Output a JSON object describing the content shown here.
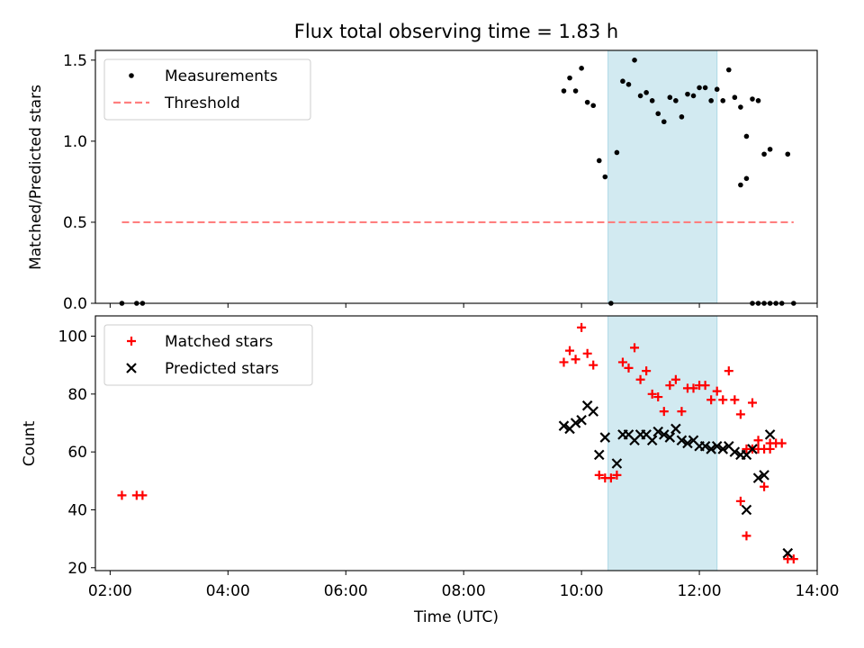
{
  "title": "Flux total observing time = 1.83 h",
  "xlabel": "Time (UTC)",
  "colors": {
    "measurements": "#000000",
    "threshold": "#ff7f7f",
    "matched": "#ff0000",
    "predicted": "#000000",
    "band": "#add8e6"
  },
  "x_ticks": [
    "02:00",
    "04:00",
    "06:00",
    "08:00",
    "10:00",
    "12:00",
    "14:00"
  ],
  "chart_data": [
    {
      "type": "scatter",
      "ylabel": "Matched/Predicted stars",
      "xlim": [
        "01:45",
        "14:00"
      ],
      "ylim": [
        0,
        1.56
      ],
      "y_ticks": [
        "0.0",
        "0.5",
        "1.0",
        "1.5"
      ],
      "y_tick_values": [
        0,
        0.5,
        1.0,
        1.5
      ],
      "shaded_band": [
        "10:27",
        "12:18"
      ],
      "legend": [
        "Measurements",
        "Threshold"
      ],
      "legend_position": "upper left",
      "series": [
        {
          "name": "Measurements",
          "marker": "dot",
          "points": [
            [
              "02:12",
              0
            ],
            [
              "02:27",
              0
            ],
            [
              "02:33",
              0
            ],
            [
              "09:42",
              1.31
            ],
            [
              "09:48",
              1.39
            ],
            [
              "09:54",
              1.31
            ],
            [
              "10:00",
              1.45
            ],
            [
              "10:06",
              1.24
            ],
            [
              "10:12",
              1.22
            ],
            [
              "10:18",
              0.88
            ],
            [
              "10:24",
              0.78
            ],
            [
              "10:30",
              0.0
            ],
            [
              "10:36",
              0.93
            ],
            [
              "10:42",
              1.37
            ],
            [
              "10:48",
              1.35
            ],
            [
              "10:54",
              1.5
            ],
            [
              "11:00",
              1.28
            ],
            [
              "11:06",
              1.3
            ],
            [
              "11:12",
              1.25
            ],
            [
              "11:18",
              1.17
            ],
            [
              "11:24",
              1.12
            ],
            [
              "11:30",
              1.27
            ],
            [
              "11:36",
              1.25
            ],
            [
              "11:42",
              1.15
            ],
            [
              "11:48",
              1.29
            ],
            [
              "11:54",
              1.28
            ],
            [
              "12:00",
              1.33
            ],
            [
              "12:06",
              1.33
            ],
            [
              "12:12",
              1.25
            ],
            [
              "12:18",
              1.32
            ],
            [
              "12:24",
              1.25
            ],
            [
              "12:30",
              1.44
            ],
            [
              "12:36",
              1.27
            ],
            [
              "12:42",
              1.21
            ],
            [
              "12:48",
              1.03
            ],
            [
              "12:54",
              0
            ],
            [
              "13:00",
              0
            ],
            [
              "13:06",
              0
            ],
            [
              "13:12",
              0
            ],
            [
              "12:42",
              0.73
            ],
            [
              "12:48",
              0.77
            ],
            [
              "12:54",
              1.26
            ],
            [
              "13:00",
              1.25
            ],
            [
              "13:06",
              0.92
            ],
            [
              "13:12",
              0.95
            ],
            [
              "13:18",
              0
            ],
            [
              "13:24",
              0
            ],
            [
              "13:30",
              0.92
            ],
            [
              "13:36",
              0
            ]
          ]
        },
        {
          "name": "Threshold",
          "marker": "dashed-line",
          "points": [
            [
              "02:12",
              0.5
            ],
            [
              "13:36",
              0.5
            ]
          ]
        }
      ]
    },
    {
      "type": "scatter",
      "ylabel": "Count",
      "xlabel": "Time (UTC)",
      "xlim": [
        "01:45",
        "14:00"
      ],
      "ylim": [
        19,
        107
      ],
      "y_ticks": [
        "20",
        "40",
        "60",
        "80",
        "100"
      ],
      "y_tick_values": [
        20,
        40,
        60,
        80,
        100
      ],
      "shaded_band": [
        "10:27",
        "12:18"
      ],
      "legend": [
        "Matched stars",
        "Predicted stars"
      ],
      "legend_position": "upper left",
      "series": [
        {
          "name": "Matched stars",
          "marker": "plus",
          "points": [
            [
              "02:12",
              45
            ],
            [
              "02:27",
              45
            ],
            [
              "02:33",
              45
            ],
            [
              "09:42",
              91
            ],
            [
              "09:48",
              95
            ],
            [
              "09:54",
              92
            ],
            [
              "10:00",
              103
            ],
            [
              "10:06",
              94
            ],
            [
              "10:12",
              90
            ],
            [
              "10:18",
              52
            ],
            [
              "10:24",
              51
            ],
            [
              "10:30",
              51
            ],
            [
              "10:36",
              52
            ],
            [
              "10:42",
              91
            ],
            [
              "10:48",
              89
            ],
            [
              "10:54",
              96
            ],
            [
              "11:00",
              85
            ],
            [
              "11:06",
              88
            ],
            [
              "11:12",
              80
            ],
            [
              "11:18",
              79
            ],
            [
              "11:24",
              74
            ],
            [
              "11:30",
              83
            ],
            [
              "11:36",
              85
            ],
            [
              "11:42",
              74
            ],
            [
              "11:48",
              82
            ],
            [
              "11:54",
              82
            ],
            [
              "12:00",
              83
            ],
            [
              "12:06",
              83
            ],
            [
              "12:12",
              78
            ],
            [
              "12:18",
              81
            ],
            [
              "12:24",
              78
            ],
            [
              "12:30",
              88
            ],
            [
              "12:36",
              78
            ],
            [
              "12:42",
              73
            ],
            [
              "12:48",
              61
            ],
            [
              "12:54",
              61
            ],
            [
              "13:00",
              61
            ],
            [
              "13:06",
              61
            ],
            [
              "13:12",
              61
            ],
            [
              "12:42",
              43
            ],
            [
              "12:48",
              31
            ],
            [
              "12:54",
              77
            ],
            [
              "13:00",
              64
            ],
            [
              "13:06",
              48
            ],
            [
              "13:12",
              63
            ],
            [
              "13:18",
              63
            ],
            [
              "13:24",
              63
            ],
            [
              "13:30",
              23
            ],
            [
              "13:36",
              23
            ]
          ]
        },
        {
          "name": "Predicted stars",
          "marker": "x",
          "points": [
            [
              "09:42",
              69
            ],
            [
              "09:48",
              68
            ],
            [
              "09:54",
              70
            ],
            [
              "10:00",
              71
            ],
            [
              "10:06",
              76
            ],
            [
              "10:12",
              74
            ],
            [
              "10:18",
              59
            ],
            [
              "10:24",
              65
            ],
            [
              "10:36",
              56
            ],
            [
              "10:42",
              66
            ],
            [
              "10:48",
              66
            ],
            [
              "10:54",
              64
            ],
            [
              "11:00",
              66
            ],
            [
              "11:06",
              66
            ],
            [
              "11:12",
              64
            ],
            [
              "11:18",
              67
            ],
            [
              "11:24",
              66
            ],
            [
              "11:30",
              65
            ],
            [
              "11:36",
              68
            ],
            [
              "11:42",
              64
            ],
            [
              "11:48",
              63
            ],
            [
              "11:54",
              64
            ],
            [
              "12:00",
              62
            ],
            [
              "12:06",
              62
            ],
            [
              "12:12",
              61
            ],
            [
              "12:18",
              62
            ],
            [
              "12:24",
              61
            ],
            [
              "12:30",
              62
            ],
            [
              "12:36",
              60
            ],
            [
              "12:42",
              59
            ],
            [
              "12:48",
              59
            ],
            [
              "12:54",
              61
            ],
            [
              "13:00",
              51
            ],
            [
              "13:06",
              52
            ],
            [
              "13:12",
              66
            ],
            [
              "12:48",
              40
            ],
            [
              "13:30",
              25
            ]
          ]
        }
      ]
    }
  ]
}
